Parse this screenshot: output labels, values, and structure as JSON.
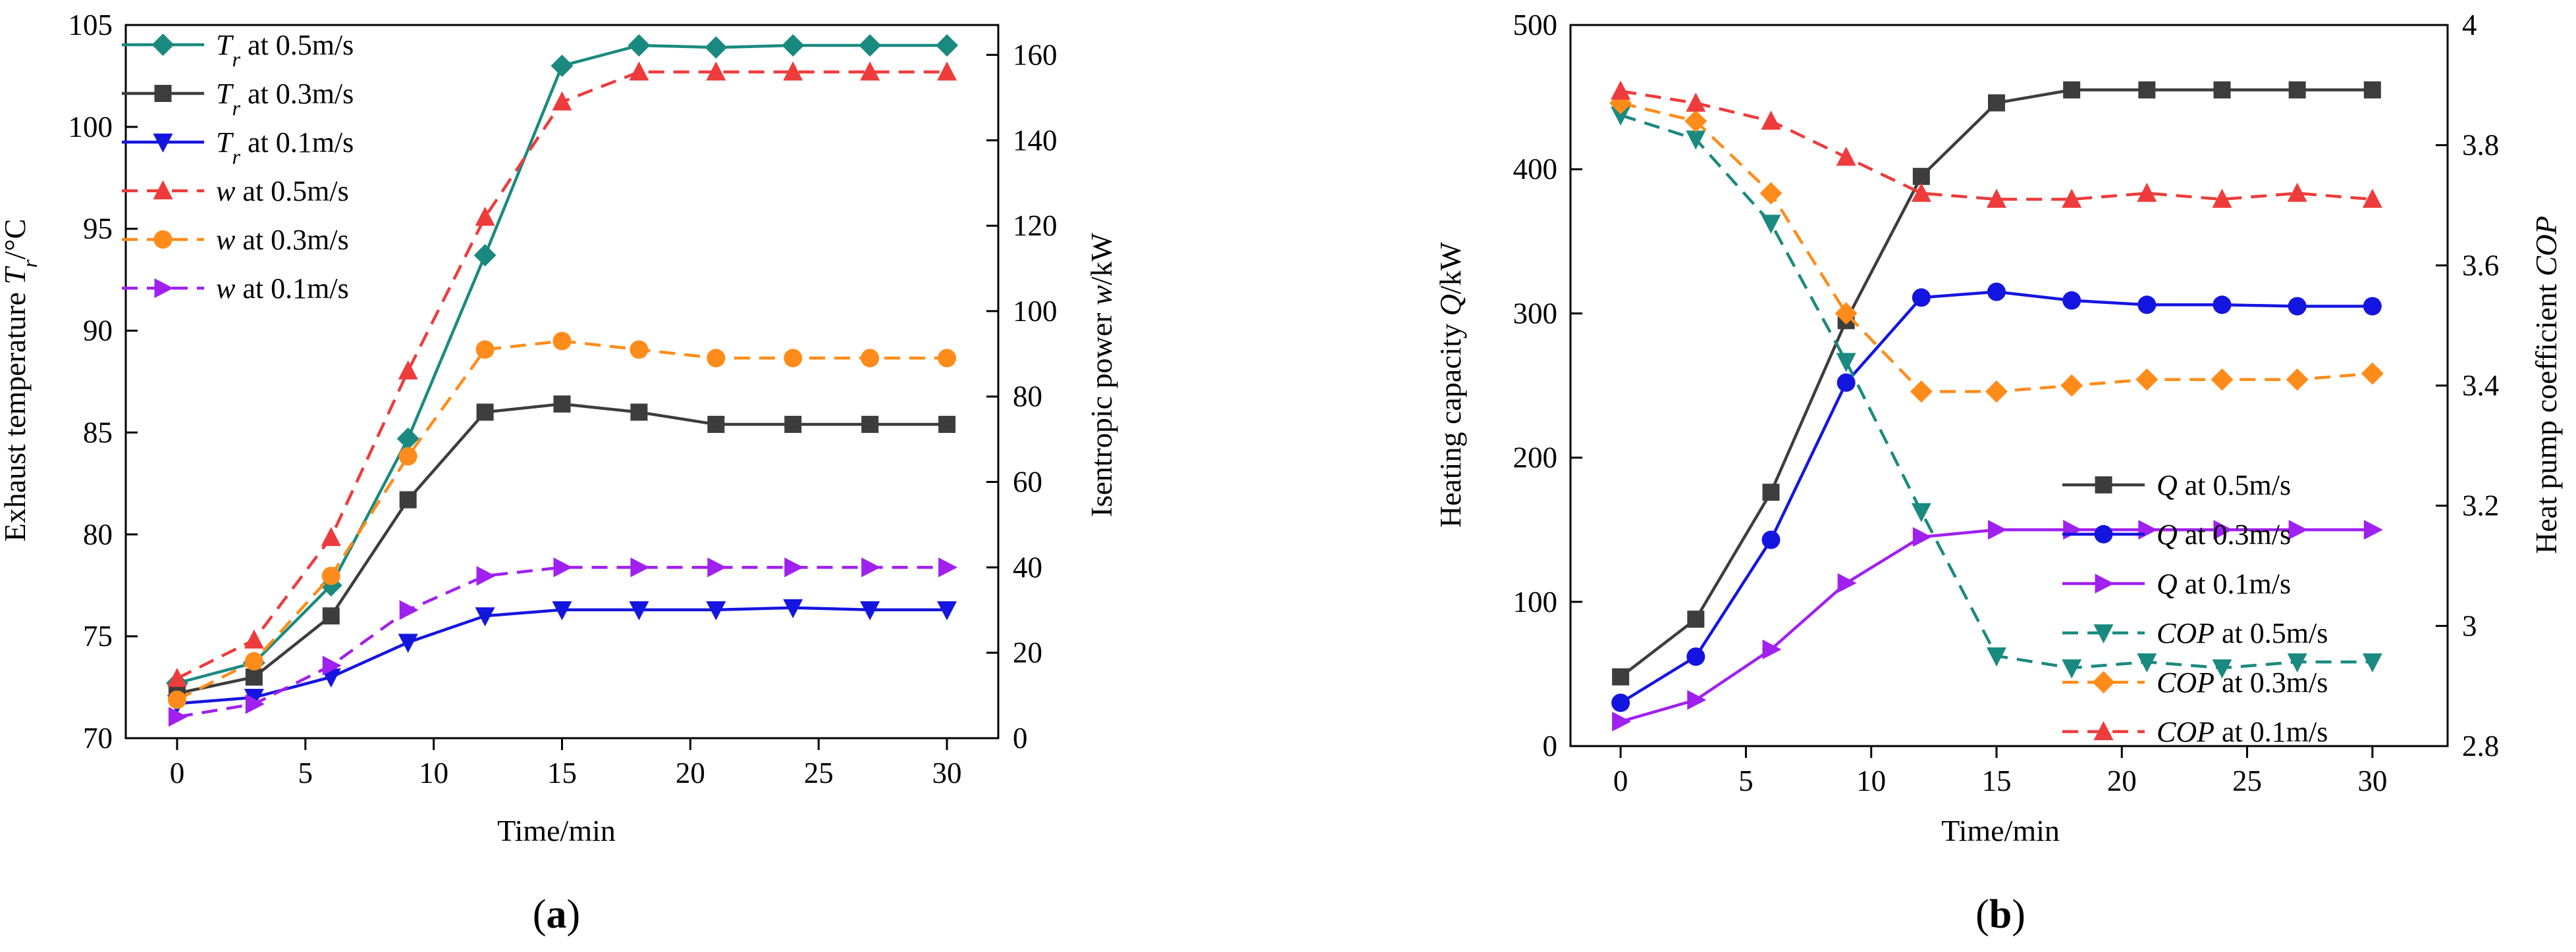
{
  "chart_data": [
    {
      "type": "line",
      "panel_label": "(a)",
      "caption": {
        "open": "(",
        "letter": "a",
        "close": ")"
      },
      "xlabel": "Time/min",
      "ylabel_left": "Exhaust temperature T_r/°C",
      "ylabel_right": "Isentropic power w/kW",
      "xlim": [
        -2,
        32
      ],
      "ylim_left": [
        70,
        105
      ],
      "ylim_right": [
        0,
        167
      ],
      "xticks": [
        0,
        5,
        10,
        15,
        20,
        25,
        30
      ],
      "yticks_left": [
        70,
        75,
        80,
        85,
        90,
        95,
        100,
        105
      ],
      "yticks_right": [
        0,
        20,
        40,
        60,
        80,
        100,
        120,
        140,
        160
      ],
      "x": [
        0,
        3,
        6,
        9,
        12,
        15,
        18,
        21,
        24,
        27,
        30
      ],
      "series": [
        {
          "name": "T_r at 0.5m/s",
          "var": "T",
          "sub": "r",
          "label": " at 0.5m/s",
          "axis": "left",
          "color": "#1a8a80",
          "dash": false,
          "marker": "diamond",
          "values": [
            72.7,
            73.7,
            77.5,
            84.7,
            93.7,
            103.0,
            104.0,
            103.9,
            104.0,
            104.0,
            104.0
          ]
        },
        {
          "name": "T_r at 0.3m/s",
          "var": "T",
          "sub": "r",
          "label": " at 0.3m/s",
          "axis": "left",
          "color": "#3d3d3d",
          "dash": false,
          "marker": "square",
          "values": [
            72.2,
            73.0,
            76.0,
            81.7,
            86.0,
            86.4,
            86.0,
            85.4,
            85.4,
            85.4,
            85.4
          ]
        },
        {
          "name": "T_r at 0.1m/s",
          "var": "T",
          "sub": "r",
          "label": " at 0.1m/s",
          "axis": "left",
          "color": "#1515e0",
          "dash": false,
          "marker": "tri-down",
          "values": [
            71.7,
            72.0,
            73.0,
            74.7,
            76.0,
            76.3,
            76.3,
            76.3,
            76.4,
            76.3,
            76.3
          ]
        },
        {
          "name": "w at 0.5m/s",
          "var": "w",
          "sub": "",
          "label": " at 0.5m/s",
          "axis": "right",
          "color": "#ee3b3b",
          "dash": true,
          "marker": "tri-up",
          "values": [
            14,
            23,
            47,
            86,
            122,
            149,
            156,
            156,
            156,
            156,
            156
          ]
        },
        {
          "name": "w at 0.3m/s",
          "var": "w",
          "sub": "",
          "label": " at 0.3m/s",
          "axis": "right",
          "color": "#ff8c1a",
          "dash": true,
          "marker": "circle",
          "values": [
            9,
            18,
            38,
            66,
            91,
            93,
            91,
            89,
            89,
            89,
            89
          ]
        },
        {
          "name": "w at 0.1m/s",
          "var": "w",
          "sub": "",
          "label": " at 0.1m/s",
          "axis": "right",
          "color": "#a020f0",
          "dash": true,
          "marker": "tri-right",
          "values": [
            5,
            8,
            17,
            30,
            38,
            40,
            40,
            40,
            40,
            40,
            40
          ]
        }
      ]
    },
    {
      "type": "line",
      "panel_label": "(b)",
      "caption": {
        "open": "(",
        "letter": "b",
        "close": ")"
      },
      "xlabel": "Time/min",
      "ylabel_left": "Heating capacity Q/kW",
      "ylabel_right": "Heat pump coefficient COP",
      "xlim": [
        -2,
        33
      ],
      "ylim_left": [
        0,
        500
      ],
      "ylim_right": [
        2.8,
        4.0
      ],
      "xticks": [
        0,
        5,
        10,
        15,
        20,
        25,
        30
      ],
      "yticks_left": [
        0,
        100,
        200,
        300,
        400,
        500
      ],
      "yticks_right": [
        2.8,
        3.0,
        3.2,
        3.4,
        3.6,
        3.8,
        4.0
      ],
      "x": [
        0,
        3,
        6,
        9,
        12,
        15,
        18,
        21,
        24,
        27,
        30
      ],
      "series": [
        {
          "name": "Q at 0.5m/s",
          "var": "Q",
          "sub": "",
          "label": " at 0.5m/s",
          "axis": "left",
          "color": "#3d3d3d",
          "dash": false,
          "marker": "square",
          "values": [
            48,
            88,
            176,
            295,
            395,
            446,
            455,
            455,
            455,
            455,
            455
          ]
        },
        {
          "name": "Q  at 0.3m/s",
          "var": "Q",
          "sub": "",
          "label": "  at 0.3m/s",
          "axis": "left",
          "color": "#1515e0",
          "dash": false,
          "marker": "circle",
          "values": [
            30,
            62,
            143,
            252,
            311,
            315,
            309,
            306,
            306,
            305,
            305
          ]
        },
        {
          "name": "Q at 0.1m/s",
          "var": "Q",
          "sub": "",
          "label": " at 0.1m/s",
          "axis": "left",
          "color": "#a020f0",
          "dash": false,
          "marker": "tri-right",
          "values": [
            17,
            32,
            67,
            113,
            145,
            150,
            150,
            150,
            150,
            150,
            150
          ]
        },
        {
          "name": "COP at 0.5m/s",
          "var": "COP",
          "sub": "",
          "label": " at 0.5m/s",
          "axis": "right",
          "color": "#1a8a80",
          "dash": true,
          "marker": "tri-down",
          "values": [
            3.85,
            3.81,
            3.67,
            3.44,
            3.19,
            2.95,
            2.93,
            2.94,
            2.93,
            2.94,
            2.94
          ]
        },
        {
          "name": "COP at 0.3m/s",
          "var": "COP",
          "sub": "",
          "label": " at 0.3m/s",
          "axis": "right",
          "color": "#ff8c1a",
          "dash": true,
          "marker": "diamond",
          "values": [
            3.87,
            3.84,
            3.72,
            3.52,
            3.39,
            3.39,
            3.4,
            3.41,
            3.41,
            3.41,
            3.42
          ]
        },
        {
          "name": "COP at 0.1m/s",
          "var": "COP",
          "sub": "",
          "label": " at 0.1m/s",
          "axis": "right",
          "color": "#ee3b3b",
          "dash": true,
          "marker": "tri-up",
          "values": [
            3.89,
            3.87,
            3.84,
            3.78,
            3.72,
            3.71,
            3.71,
            3.72,
            3.71,
            3.72,
            3.71
          ]
        }
      ]
    }
  ]
}
